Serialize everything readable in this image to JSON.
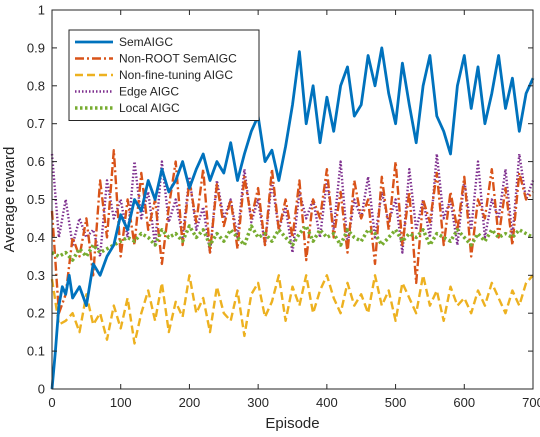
{
  "chart_data": {
    "type": "line",
    "title": "",
    "xlabel": "Episode",
    "ylabel": "Average reward",
    "xlim": [
      0,
      700
    ],
    "ylim": [
      0,
      1
    ],
    "xticks": [
      0,
      100,
      200,
      300,
      400,
      500,
      600,
      700
    ],
    "yticks": [
      0,
      0.1,
      0.2,
      0.3,
      0.4,
      0.5,
      0.6,
      0.7,
      0.8,
      0.9,
      1
    ],
    "grid": false,
    "legend": "top-left",
    "series": [
      {
        "name": "SemAIGC",
        "color": "#0072BD",
        "style": "solid",
        "x": [
          0,
          5,
          10,
          15,
          20,
          25,
          30,
          40,
          50,
          60,
          70,
          80,
          90,
          100,
          110,
          120,
          130,
          140,
          150,
          160,
          170,
          180,
          190,
          200,
          210,
          220,
          230,
          240,
          250,
          260,
          270,
          280,
          290,
          300,
          310,
          320,
          330,
          340,
          350,
          360,
          370,
          380,
          390,
          400,
          410,
          420,
          430,
          440,
          450,
          460,
          470,
          480,
          490,
          500,
          510,
          520,
          530,
          540,
          550,
          560,
          570,
          580,
          590,
          600,
          610,
          620,
          630,
          640,
          650,
          660,
          670,
          680,
          690,
          700
        ],
        "y": [
          0.0,
          0.1,
          0.22,
          0.27,
          0.25,
          0.3,
          0.24,
          0.27,
          0.22,
          0.33,
          0.3,
          0.35,
          0.38,
          0.46,
          0.42,
          0.5,
          0.47,
          0.55,
          0.5,
          0.58,
          0.52,
          0.55,
          0.6,
          0.53,
          0.58,
          0.62,
          0.55,
          0.6,
          0.57,
          0.65,
          0.55,
          0.62,
          0.68,
          0.72,
          0.6,
          0.63,
          0.55,
          0.64,
          0.75,
          0.89,
          0.7,
          0.8,
          0.65,
          0.77,
          0.68,
          0.8,
          0.85,
          0.72,
          0.75,
          0.88,
          0.8,
          0.9,
          0.78,
          0.7,
          0.86,
          0.75,
          0.65,
          0.8,
          0.88,
          0.72,
          0.68,
          0.62,
          0.8,
          0.88,
          0.74,
          0.85,
          0.7,
          0.78,
          0.88,
          0.74,
          0.82,
          0.68,
          0.78,
          0.82
        ]
      },
      {
        "name": "Non-ROOT SemAIGC",
        "color": "#D95319",
        "style": "dashdot",
        "x": [
          0,
          10,
          20,
          30,
          40,
          50,
          60,
          70,
          80,
          90,
          100,
          110,
          120,
          130,
          140,
          150,
          160,
          170,
          180,
          190,
          200,
          210,
          220,
          230,
          240,
          250,
          260,
          270,
          280,
          290,
          300,
          310,
          320,
          330,
          340,
          350,
          360,
          370,
          380,
          390,
          400,
          410,
          420,
          430,
          440,
          450,
          460,
          470,
          480,
          490,
          500,
          510,
          520,
          530,
          540,
          550,
          560,
          570,
          580,
          590,
          600,
          610,
          620,
          630,
          640,
          650,
          660,
          670,
          680,
          690,
          700
        ],
        "y": [
          0.47,
          0.2,
          0.25,
          0.4,
          0.35,
          0.45,
          0.3,
          0.55,
          0.4,
          0.63,
          0.35,
          0.5,
          0.38,
          0.57,
          0.42,
          0.5,
          0.33,
          0.48,
          0.6,
          0.38,
          0.55,
          0.44,
          0.58,
          0.36,
          0.54,
          0.43,
          0.5,
          0.37,
          0.56,
          0.45,
          0.53,
          0.38,
          0.58,
          0.42,
          0.5,
          0.4,
          0.55,
          0.34,
          0.5,
          0.45,
          0.58,
          0.4,
          0.52,
          0.36,
          0.55,
          0.45,
          0.5,
          0.33,
          0.56,
          0.42,
          0.6,
          0.38,
          0.52,
          0.28,
          0.5,
          0.44,
          0.57,
          0.38,
          0.52,
          0.42,
          0.56,
          0.35,
          0.5,
          0.45,
          0.58,
          0.4,
          0.53,
          0.38,
          0.57,
          0.5,
          0.52
        ]
      },
      {
        "name": "Non-fine-tuning AIGC",
        "color": "#EDB120",
        "style": "dashed",
        "x": [
          0,
          10,
          20,
          30,
          40,
          50,
          60,
          70,
          80,
          90,
          100,
          110,
          120,
          130,
          140,
          150,
          160,
          170,
          180,
          190,
          200,
          210,
          220,
          230,
          240,
          250,
          260,
          270,
          280,
          290,
          300,
          310,
          320,
          330,
          340,
          350,
          360,
          370,
          380,
          390,
          400,
          410,
          420,
          430,
          440,
          450,
          460,
          470,
          480,
          490,
          500,
          510,
          520,
          530,
          540,
          550,
          560,
          570,
          580,
          590,
          600,
          610,
          620,
          630,
          640,
          650,
          660,
          670,
          680,
          690,
          700
        ],
        "y": [
          0.29,
          0.17,
          0.18,
          0.2,
          0.15,
          0.25,
          0.17,
          0.2,
          0.13,
          0.22,
          0.16,
          0.24,
          0.12,
          0.2,
          0.26,
          0.18,
          0.28,
          0.15,
          0.23,
          0.19,
          0.3,
          0.2,
          0.24,
          0.15,
          0.27,
          0.2,
          0.18,
          0.26,
          0.14,
          0.25,
          0.28,
          0.19,
          0.23,
          0.3,
          0.18,
          0.27,
          0.22,
          0.3,
          0.2,
          0.26,
          0.3,
          0.24,
          0.2,
          0.28,
          0.22,
          0.25,
          0.2,
          0.3,
          0.22,
          0.26,
          0.18,
          0.28,
          0.24,
          0.2,
          0.3,
          0.22,
          0.26,
          0.18,
          0.27,
          0.22,
          0.24,
          0.2,
          0.26,
          0.22,
          0.28,
          0.24,
          0.2,
          0.26,
          0.22,
          0.28,
          0.3
        ]
      },
      {
        "name": "Edge AIGC",
        "color": "#7E2F8E",
        "style": "dotted",
        "x": [
          0,
          10,
          20,
          30,
          40,
          50,
          60,
          70,
          80,
          90,
          100,
          110,
          120,
          130,
          140,
          150,
          160,
          170,
          180,
          190,
          200,
          210,
          220,
          230,
          240,
          250,
          260,
          270,
          280,
          290,
          300,
          310,
          320,
          330,
          340,
          350,
          360,
          370,
          380,
          390,
          400,
          410,
          420,
          430,
          440,
          450,
          460,
          470,
          480,
          490,
          500,
          510,
          520,
          530,
          540,
          550,
          560,
          570,
          580,
          590,
          600,
          610,
          620,
          630,
          640,
          650,
          660,
          670,
          680,
          690,
          700
        ],
        "y": [
          0.62,
          0.4,
          0.5,
          0.38,
          0.45,
          0.4,
          0.42,
          0.35,
          0.55,
          0.45,
          0.5,
          0.4,
          0.6,
          0.45,
          0.52,
          0.38,
          0.6,
          0.44,
          0.5,
          0.4,
          0.56,
          0.42,
          0.48,
          0.36,
          0.55,
          0.45,
          0.5,
          0.4,
          0.58,
          0.44,
          0.5,
          0.38,
          0.55,
          0.42,
          0.48,
          0.36,
          0.52,
          0.45,
          0.5,
          0.4,
          0.55,
          0.42,
          0.6,
          0.38,
          0.5,
          0.45,
          0.56,
          0.4,
          0.52,
          0.44,
          0.5,
          0.36,
          0.58,
          0.42,
          0.5,
          0.4,
          0.62,
          0.45,
          0.5,
          0.38,
          0.55,
          0.42,
          0.6,
          0.4,
          0.5,
          0.45,
          0.58,
          0.4,
          0.62,
          0.5,
          0.55
        ]
      },
      {
        "name": "Local AIGC",
        "color": "#77AC30",
        "style": "dotted-thick",
        "x": [
          0,
          10,
          20,
          30,
          40,
          50,
          60,
          70,
          80,
          90,
          100,
          110,
          120,
          130,
          140,
          150,
          160,
          170,
          180,
          190,
          200,
          210,
          220,
          230,
          240,
          250,
          260,
          270,
          280,
          290,
          300,
          310,
          320,
          330,
          340,
          350,
          360,
          370,
          380,
          390,
          400,
          410,
          420,
          430,
          440,
          450,
          460,
          470,
          480,
          490,
          500,
          510,
          520,
          530,
          540,
          550,
          560,
          570,
          580,
          590,
          600,
          610,
          620,
          630,
          640,
          650,
          660,
          670,
          680,
          690,
          700
        ],
        "y": [
          0.36,
          0.35,
          0.36,
          0.34,
          0.37,
          0.35,
          0.38,
          0.36,
          0.37,
          0.38,
          0.39,
          0.4,
          0.39,
          0.41,
          0.4,
          0.38,
          0.42,
          0.4,
          0.41,
          0.39,
          0.43,
          0.4,
          0.42,
          0.38,
          0.41,
          0.39,
          0.42,
          0.4,
          0.38,
          0.43,
          0.4,
          0.41,
          0.39,
          0.42,
          0.4,
          0.38,
          0.41,
          0.43,
          0.39,
          0.42,
          0.4,
          0.41,
          0.38,
          0.42,
          0.4,
          0.39,
          0.42,
          0.41,
          0.38,
          0.4,
          0.42,
          0.39,
          0.41,
          0.4,
          0.42,
          0.38,
          0.41,
          0.4,
          0.39,
          0.42,
          0.4,
          0.38,
          0.41,
          0.39,
          0.42,
          0.4,
          0.41,
          0.4,
          0.42,
          0.41,
          0.4
        ]
      }
    ]
  }
}
